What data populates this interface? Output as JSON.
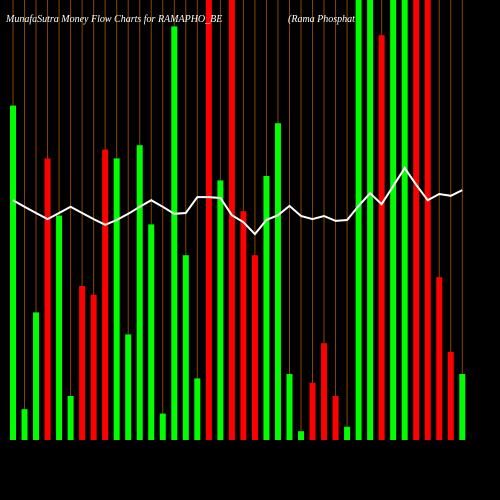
{
  "chart_data": {
    "type": "bar",
    "title": "MunafaSutra  Money  Flow  Charts for  RAMAPHO_BE",
    "subtitle": "(Rama  Phosphat",
    "values": [
      76,
      7,
      29,
      64,
      51,
      10,
      35,
      33,
      66,
      64,
      24,
      67,
      49,
      6,
      94,
      42,
      14,
      100,
      59,
      100,
      52,
      42,
      60,
      72,
      15,
      2,
      13,
      22,
      10,
      3,
      100,
      100,
      92,
      100,
      100,
      100,
      100,
      37,
      20,
      15
    ],
    "colors": [
      "#00ff00",
      "#00ff00",
      "#00ff00",
      "#ff0000",
      "#00ff00",
      "#00ff00",
      "#ff0000",
      "#ff0000",
      "#ff0000",
      "#00ff00",
      "#00ff00",
      "#00ff00",
      "#00ff00",
      "#00ff00",
      "#00ff00",
      "#00ff00",
      "#00ff00",
      "#ff0000",
      "#00ff00",
      "#ff0000",
      "#ff0000",
      "#ff0000",
      "#00ff00",
      "#00ff00",
      "#00ff00",
      "#00ff00",
      "#ff0000",
      "#ff0000",
      "#ff0000",
      "#00ff00",
      "#00ff00",
      "#00ff00",
      "#ff0000",
      "#00ff00",
      "#00ff00",
      "#ff0000",
      "#ff0000",
      "#ff0000",
      "#ff0000",
      "#00ff00"
    ],
    "line_values": [
      54.5,
      53,
      51.6,
      50.2,
      51.6,
      53,
      51.6,
      50.2,
      48.9,
      50,
      51.4,
      53,
      54.5,
      53,
      51.4,
      51.6,
      55.2,
      55.2,
      55,
      51.1,
      49.5,
      46.8,
      50,
      51.1,
      53.2,
      50.9,
      50.2,
      50.9,
      49.8,
      50,
      53.2,
      56.1,
      53.6,
      57.7,
      61.8,
      58,
      54.5,
      55.9,
      55.5,
      56.8
    ],
    "line_color": "#ffffff",
    "grid_color": "#8b4500",
    "ylim": [
      0,
      100
    ]
  }
}
